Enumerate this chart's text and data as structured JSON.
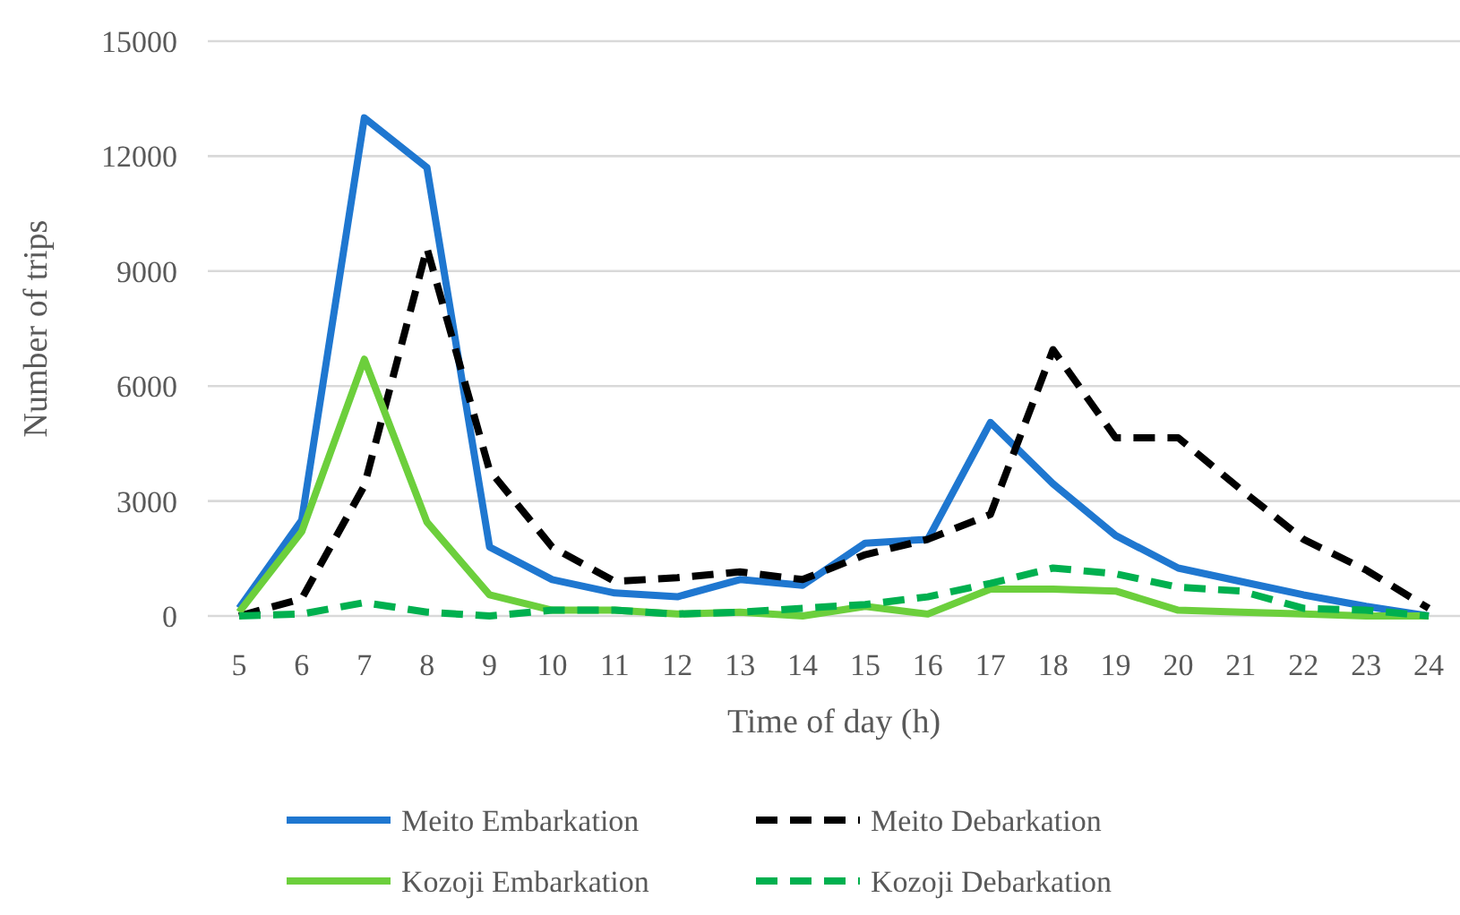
{
  "chart_data": {
    "type": "line",
    "xlabel": "Time of day (h)",
    "ylabel": "Number of trips",
    "x": [
      5,
      6,
      7,
      8,
      9,
      10,
      11,
      12,
      13,
      14,
      15,
      16,
      17,
      18,
      19,
      20,
      21,
      22,
      23,
      24
    ],
    "xlim": [
      4.5,
      24.5
    ],
    "xticks": [
      5,
      6,
      7,
      8,
      9,
      10,
      11,
      12,
      13,
      14,
      15,
      16,
      17,
      18,
      19,
      20,
      21,
      22,
      23,
      24
    ],
    "ylim": [
      0,
      15000
    ],
    "yticks": [
      0,
      3000,
      6000,
      9000,
      12000,
      15000
    ],
    "grid": "y",
    "legend": "bottom",
    "series": [
      {
        "name": "Meito Embarkation",
        "color": "#1f77d0",
        "line_style": "solid",
        "values": [
          200,
          2500,
          13000,
          11700,
          1800,
          950,
          600,
          500,
          950,
          800,
          1900,
          2000,
          5050,
          3450,
          2100,
          1250,
          900,
          550,
          250,
          0
        ]
      },
      {
        "name": "Meito Debarkation",
        "color": "#000000",
        "line_style": "dashed",
        "values": [
          0,
          450,
          3400,
          9600,
          3800,
          1800,
          900,
          1000,
          1150,
          950,
          1600,
          2000,
          2650,
          6950,
          4650,
          4650,
          3300,
          2000,
          1200,
          200
        ]
      },
      {
        "name": "Kozoji Embarkation",
        "color": "#6ccf3c",
        "line_style": "solid",
        "values": [
          100,
          2200,
          6700,
          2450,
          550,
          150,
          150,
          50,
          100,
          0,
          250,
          50,
          700,
          700,
          650,
          150,
          100,
          50,
          0,
          0
        ]
      },
      {
        "name": "Kozoji Debarkation",
        "color": "#00b04f",
        "line_style": "dashed",
        "values": [
          0,
          50,
          350,
          100,
          0,
          150,
          150,
          50,
          100,
          200,
          300,
          500,
          850,
          1250,
          1100,
          750,
          650,
          200,
          150,
          0
        ]
      }
    ]
  }
}
